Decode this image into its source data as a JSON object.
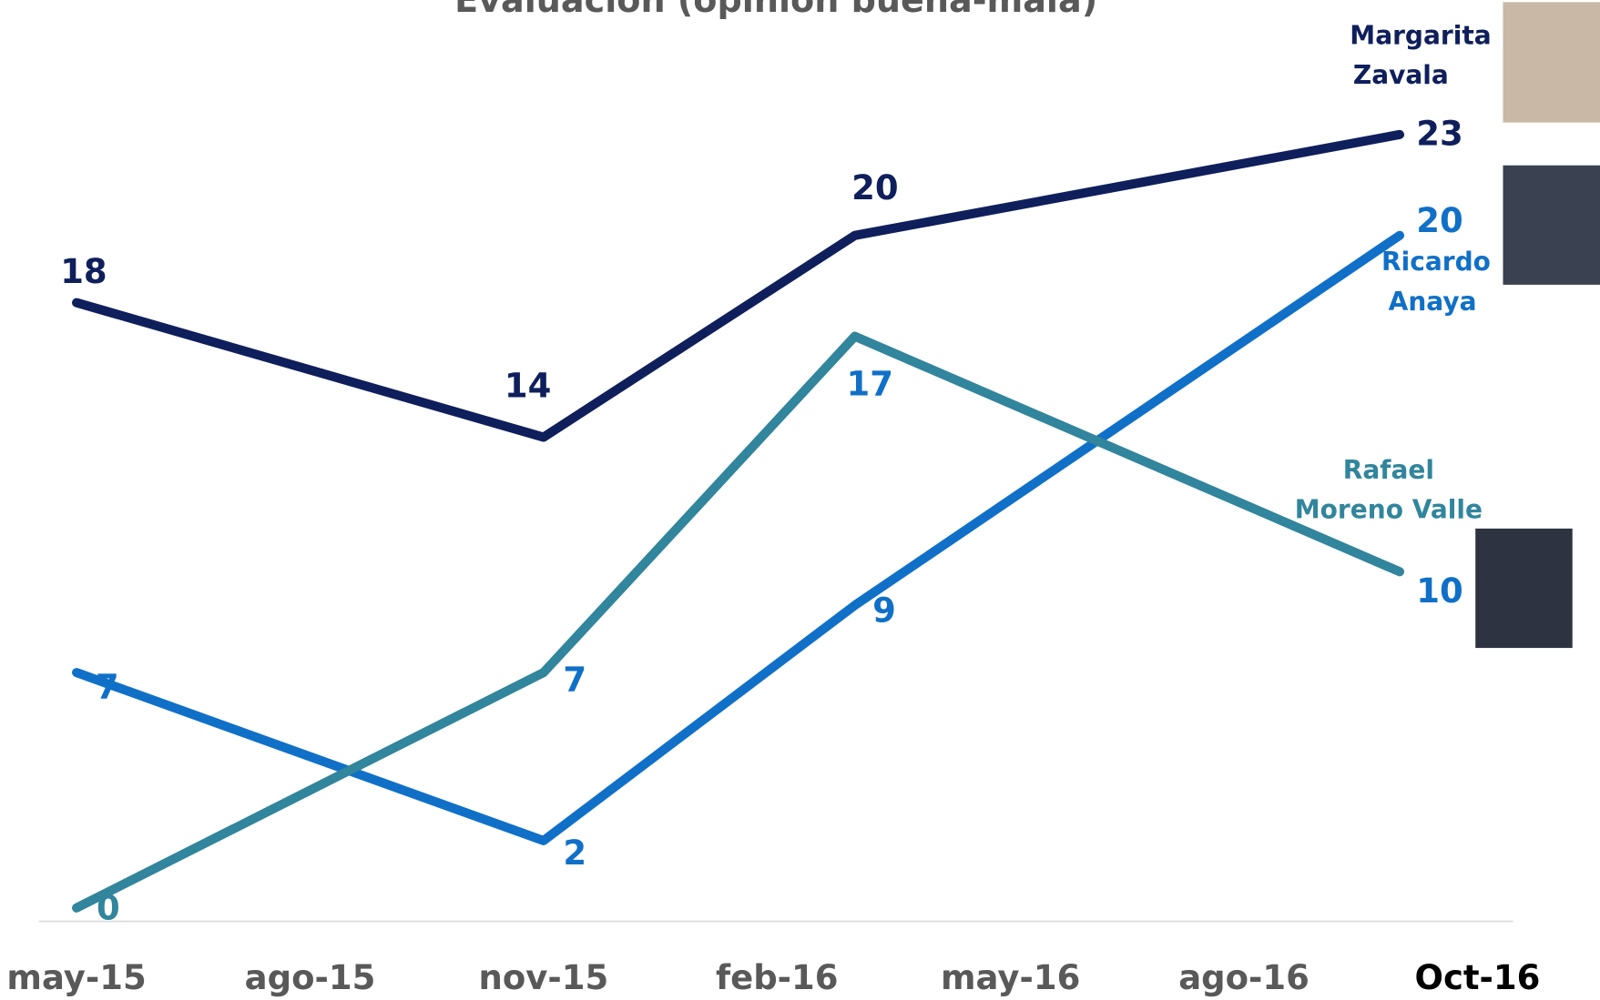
{
  "chart_data": {
    "type": "line",
    "title": "Evaluación (opinión buena-mala)",
    "x": [
      0,
      6,
      10,
      17
    ],
    "xlim": [
      0,
      18
    ],
    "xticks": [
      {
        "value": 0,
        "label": "may-15"
      },
      {
        "value": 3,
        "label": "ago-15"
      },
      {
        "value": 6,
        "label": "nov-15"
      },
      {
        "value": 9,
        "label": "feb-16"
      },
      {
        "value": 12,
        "label": "may-16"
      },
      {
        "value": 15,
        "label": "ago-16"
      },
      {
        "value": 18,
        "label": "Oct-16"
      }
    ],
    "ylim": [
      -0.4,
      27
    ],
    "series": [
      {
        "name": "Margarita Zavala",
        "color": "#0f1f5c",
        "values": [
          18,
          14,
          20,
          23
        ]
      },
      {
        "name": "Ricardo Anaya",
        "color": "#1070c8",
        "values": [
          7,
          2,
          9,
          20
        ]
      },
      {
        "name": "Rafael Moreno Valle",
        "color": "#31859c",
        "values": [
          0,
          7,
          17,
          10
        ]
      }
    ]
  }
}
